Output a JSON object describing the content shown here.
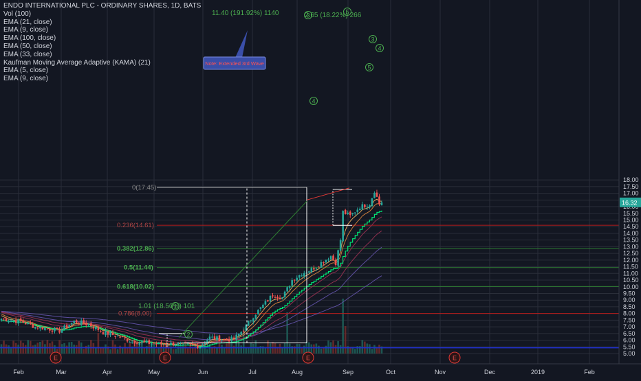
{
  "header": {
    "title": "ENDO INTERNATIONAL PLC - ORDINARY SHARES, 1D, BATS",
    "indicators": [
      "Vol (100)",
      "EMA (21, close)",
      "EMA (9, close)",
      "EMA (100, close)",
      "EMA (50, close)",
      "EMA (33, close)",
      "Kaufman Moving Average Adaptive (KAMA) (21)",
      "EMA (5, close)",
      "EMA (9, close)"
    ]
  },
  "colors": {
    "background": "#131722",
    "grid": "#2a2e39",
    "text": "#d1d4dc",
    "up_candle": "#26a69a",
    "down_candle": "#ef5350",
    "fib_red": "#b71c1c",
    "fib_green": "#2e7d32",
    "fib_label_green": "#4caf50",
    "support_blue": "#1e2fd6",
    "kama": "#00e676",
    "ema_slow": "#5c4e9e",
    "ema_mid": "#8e2f4e",
    "ema_fast": "#c87a3a",
    "price_tag": "#26a69a",
    "note_box": "#3a4ea8",
    "note_text": "#ff5252"
  },
  "chart_data": {
    "type": "candlestick",
    "ylim": [
      4.8,
      18.3
    ],
    "y_ticks": [
      "5.00",
      "5.50",
      "6.00",
      "6.50",
      "7.00",
      "7.50",
      "8.00",
      "8.50",
      "9.00",
      "9.50",
      "10.00",
      "10.50",
      "11.00",
      "11.50",
      "12.00",
      "12.50",
      "13.00",
      "13.50",
      "14.00",
      "14.50",
      "15.00",
      "15.50",
      "16.00",
      "16.50",
      "17.00",
      "17.50",
      "18.00"
    ],
    "x_ticks": [
      "Feb",
      "Mar",
      "Apr",
      "May",
      "Jun",
      "Jul",
      "Aug",
      "Sep",
      "Oct",
      "Nov",
      "Dec",
      "2019",
      "Feb"
    ],
    "last_price": "16.32",
    "close_path": [
      [
        "Jan",
        7.6
      ],
      [
        "Feb",
        7.3
      ],
      [
        "Mar",
        7.0
      ],
      [
        "Apr",
        6.0
      ],
      [
        "May",
        5.6
      ],
      [
        "Jun",
        6.8
      ],
      [
        "Jul",
        10.0
      ],
      [
        "Aug",
        12.0
      ],
      [
        "Sep",
        16.2
      ],
      [
        "Sep",
        16.32
      ]
    ],
    "fib_levels": [
      {
        "label": "0(17.45)",
        "value": 17.45,
        "color": "red"
      },
      {
        "label": "0.236(14.61)",
        "value": 14.61,
        "color": "red"
      },
      {
        "label": "0.382(12.86)",
        "value": 12.86,
        "color": "green"
      },
      {
        "label": "0.5(11.44)",
        "value": 11.44,
        "color": "green"
      },
      {
        "label": "0.618(10.02)",
        "value": 10.02,
        "color": "green"
      },
      {
        "label": "0.786(8.00)",
        "value": 8.0,
        "color": "red"
      }
    ],
    "support_level": 5.43,
    "annotations": {
      "move_big": "11.40 (191.92%) 1140",
      "move_small": "1.01 (18.50%) 101",
      "move_top": "2.65 (18.22%) 266",
      "note": "Note: Extended 3rd Wave",
      "wave_labels": [
        "1",
        "2",
        "3",
        "4",
        "5",
        "3",
        "4",
        "5"
      ]
    },
    "earnings_markers": [
      "E",
      "E",
      "E",
      "E"
    ]
  }
}
